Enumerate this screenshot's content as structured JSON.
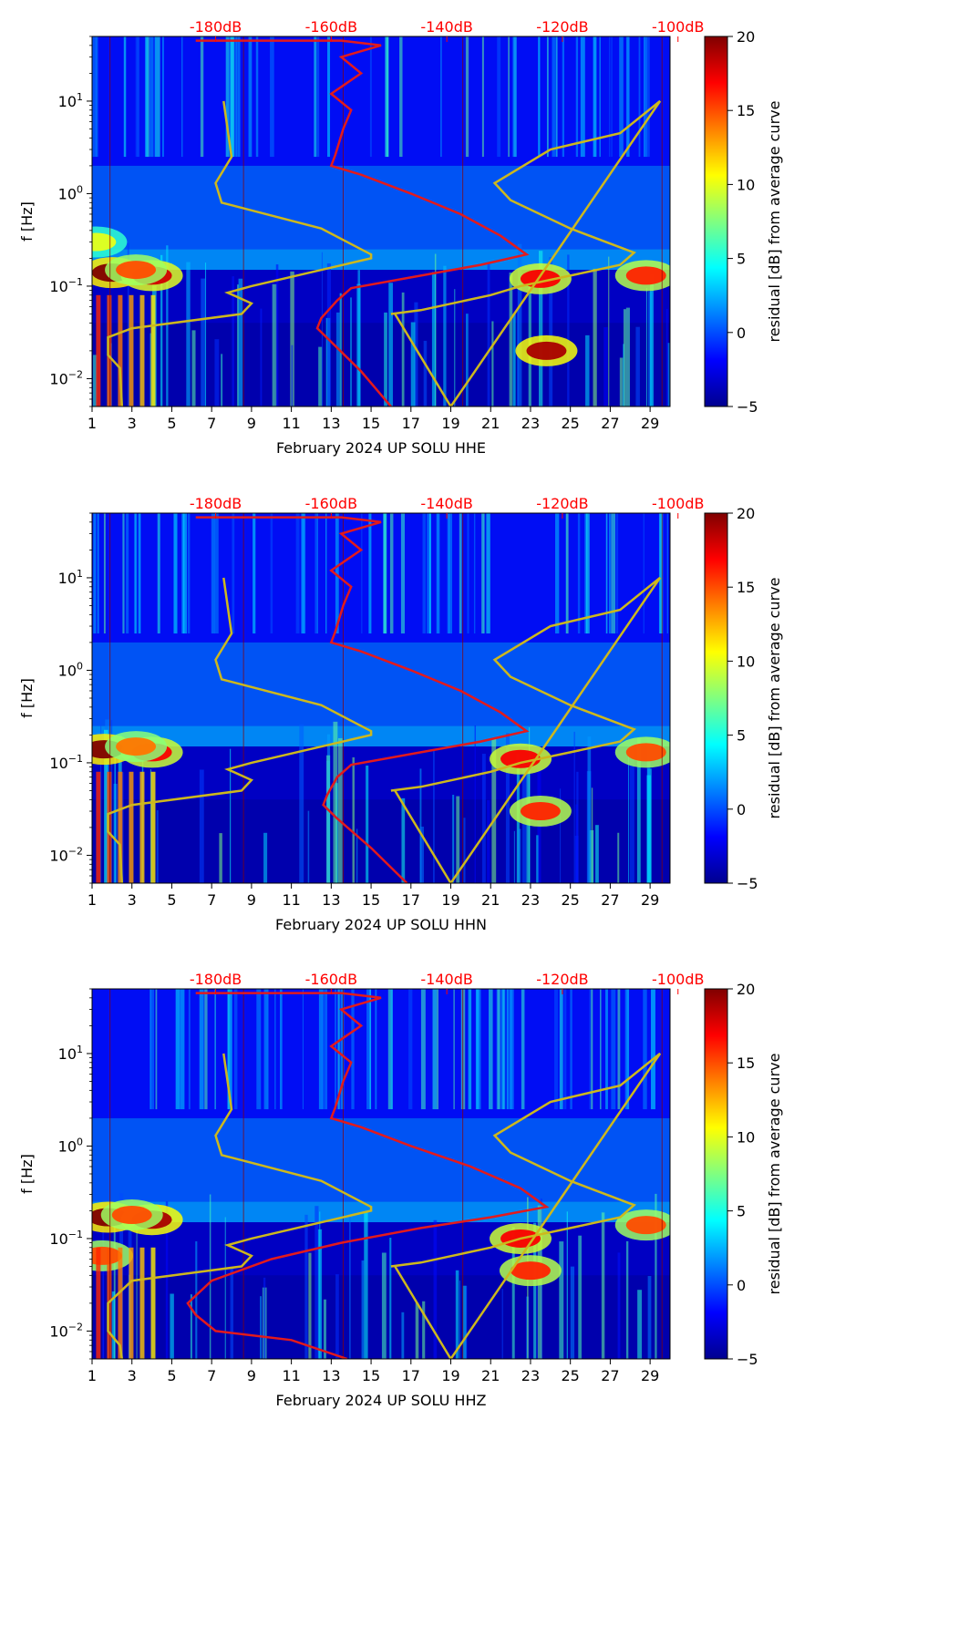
{
  "figure": {
    "colors": {
      "noise_model": "#e31a1c",
      "psd_curve": "#cdb81d",
      "text_red": "#ff0000",
      "colormap": [
        "#00008f",
        "#0000ff",
        "#0080ff",
        "#00ffff",
        "#80ff80",
        "#ffff00",
        "#ff8000",
        "#ff0000",
        "#800000"
      ]
    }
  },
  "chart_data": [
    {
      "type": "heatmap",
      "panel": "HHE",
      "title": "",
      "xlabel": "February 2024 UP SOLU  HHE",
      "ylabel": "f [Hz]",
      "x_ticks": [
        "1",
        "3",
        "5",
        "7",
        "9",
        "11",
        "13",
        "15",
        "17",
        "19",
        "21",
        "23",
        "25",
        "27",
        "29"
      ],
      "x_range": [
        1,
        30
      ],
      "y_scale": "log",
      "y_range": [
        0.005,
        50
      ],
      "y_ticks": [
        {
          "value": 0.01,
          "base": "10",
          "exp": "−2"
        },
        {
          "value": 0.1,
          "base": "10",
          "exp": "−1"
        },
        {
          "value": 1,
          "base": "10",
          "exp": "0"
        },
        {
          "value": 10,
          "base": "10",
          "exp": "1"
        }
      ],
      "top_axis_labels": [
        "-180dB",
        "-160dB",
        "-140dB",
        "-120dB",
        "-100dB"
      ],
      "top_axis_days": [
        7.2,
        13.0,
        18.8,
        24.6,
        30.4
      ],
      "colorbar": {
        "label": "residual [dB] from average curve",
        "range": [
          -5,
          20
        ],
        "ticks": [
          "20",
          "15",
          "10",
          "5",
          "0",
          "−5"
        ],
        "tick_values": [
          20,
          15,
          10,
          5,
          0,
          -5
        ]
      },
      "series": [
        {
          "name": "noise model",
          "color": "#e31a1c",
          "points": [
            [
              6.2,
              45
            ],
            [
              13.5,
              45
            ],
            [
              15.5,
              40
            ],
            [
              13.5,
              30
            ],
            [
              14.5,
              20
            ],
            [
              13.0,
              12
            ],
            [
              14.0,
              8
            ],
            [
              13.6,
              5
            ],
            [
              13.2,
              2.6
            ],
            [
              13.0,
              2.0
            ],
            [
              14.5,
              1.6
            ],
            [
              17.0,
              1.0
            ],
            [
              19.5,
              0.6
            ],
            [
              21.5,
              0.35
            ],
            [
              22.8,
              0.22
            ],
            [
              20.5,
              0.17
            ],
            [
              17.5,
              0.13
            ],
            [
              14.0,
              0.095
            ],
            [
              13.3,
              0.07
            ],
            [
              12.5,
              0.045
            ],
            [
              12.3,
              0.035
            ],
            [
              13.0,
              0.025
            ],
            [
              14.5,
              0.012
            ],
            [
              16.0,
              0.005
            ]
          ]
        },
        {
          "name": "PSD curve",
          "color": "#cdb81d",
          "points": [
            [
              2.5,
              0.005
            ],
            [
              2.4,
              0.013
            ],
            [
              1.8,
              0.018
            ],
            [
              1.8,
              0.028
            ],
            [
              3.0,
              0.035
            ],
            [
              8.5,
              0.05
            ],
            [
              9.0,
              0.065
            ],
            [
              7.8,
              0.085
            ],
            [
              9.0,
              0.1
            ],
            [
              15.0,
              0.2
            ],
            [
              15.0,
              0.22
            ],
            [
              12.5,
              0.42
            ],
            [
              7.5,
              0.8
            ],
            [
              7.2,
              1.3
            ],
            [
              8.0,
              2.5
            ],
            [
              7.6,
              10
            ],
            [
              16.0,
              0.05
            ],
            [
              17.5,
              0.055
            ],
            [
              21.0,
              0.08
            ],
            [
              22.5,
              0.1
            ],
            [
              25.0,
              0.13
            ],
            [
              27.5,
              0.17
            ],
            [
              28.2,
              0.23
            ],
            [
              25.0,
              0.42
            ],
            [
              22.0,
              0.85
            ],
            [
              21.2,
              1.3
            ],
            [
              24.0,
              3.0
            ],
            [
              27.5,
              4.5
            ],
            [
              29.5,
              10
            ],
            [
              19.0,
              0.005
            ],
            [
              16.2,
              0.05
            ]
          ]
        }
      ],
      "highlights": [
        {
          "day": 2.0,
          "f": 0.14,
          "level": 20
        },
        {
          "day": 4.0,
          "f": 0.13,
          "level": 18
        },
        {
          "day": 3.2,
          "f": 0.15,
          "level": 15
        },
        {
          "day": 23.5,
          "f": 0.12,
          "level": 17
        },
        {
          "day": 28.8,
          "f": 0.13,
          "level": 16
        },
        {
          "day": 1.2,
          "f": 0.3,
          "level": 10
        },
        {
          "day": 23.8,
          "f": 0.02,
          "level": 19
        }
      ]
    },
    {
      "type": "heatmap",
      "panel": "HHN",
      "title": "",
      "xlabel": "February 2024 UP SOLU  HHN",
      "ylabel": "f [Hz]",
      "x_ticks": [
        "1",
        "3",
        "5",
        "7",
        "9",
        "11",
        "13",
        "15",
        "17",
        "19",
        "21",
        "23",
        "25",
        "27",
        "29"
      ],
      "x_range": [
        1,
        30
      ],
      "y_scale": "log",
      "y_range": [
        0.005,
        50
      ],
      "y_ticks": [
        {
          "value": 0.01,
          "base": "10",
          "exp": "−2"
        },
        {
          "value": 0.1,
          "base": "10",
          "exp": "−1"
        },
        {
          "value": 1,
          "base": "10",
          "exp": "0"
        },
        {
          "value": 10,
          "base": "10",
          "exp": "1"
        }
      ],
      "top_axis_labels": [
        "-180dB",
        "-160dB",
        "-140dB",
        "-120dB",
        "-100dB"
      ],
      "top_axis_days": [
        7.2,
        13.0,
        18.8,
        24.6,
        30.4
      ],
      "colorbar": {
        "label": "residual [dB] from average curve",
        "range": [
          -5,
          20
        ],
        "ticks": [
          "20",
          "15",
          "10",
          "5",
          "0",
          "−5"
        ],
        "tick_values": [
          20,
          15,
          10,
          5,
          0,
          -5
        ]
      },
      "series": [
        {
          "name": "noise model",
          "color": "#e31a1c",
          "points": [
            [
              6.2,
              45
            ],
            [
              13.5,
              45
            ],
            [
              15.5,
              40
            ],
            [
              13.5,
              30
            ],
            [
              14.5,
              20
            ],
            [
              13.0,
              12
            ],
            [
              14.0,
              8
            ],
            [
              13.6,
              5
            ],
            [
              13.2,
              2.6
            ],
            [
              13.0,
              2.0
            ],
            [
              14.5,
              1.6
            ],
            [
              17.0,
              1.0
            ],
            [
              19.5,
              0.6
            ],
            [
              21.5,
              0.35
            ],
            [
              22.8,
              0.22
            ],
            [
              20.5,
              0.17
            ],
            [
              17.5,
              0.13
            ],
            [
              14.0,
              0.095
            ],
            [
              13.3,
              0.07
            ],
            [
              12.8,
              0.045
            ],
            [
              12.6,
              0.035
            ],
            [
              13.3,
              0.025
            ],
            [
              15.0,
              0.012
            ],
            [
              16.8,
              0.005
            ]
          ]
        },
        {
          "name": "PSD curve",
          "color": "#cdb81d",
          "points": [
            [
              2.5,
              0.005
            ],
            [
              2.4,
              0.013
            ],
            [
              1.8,
              0.018
            ],
            [
              1.8,
              0.028
            ],
            [
              3.0,
              0.035
            ],
            [
              8.5,
              0.05
            ],
            [
              9.0,
              0.065
            ],
            [
              7.8,
              0.085
            ],
            [
              9.0,
              0.1
            ],
            [
              15.0,
              0.2
            ],
            [
              15.0,
              0.22
            ],
            [
              12.5,
              0.42
            ],
            [
              7.5,
              0.8
            ],
            [
              7.2,
              1.3
            ],
            [
              8.0,
              2.5
            ],
            [
              7.6,
              10
            ],
            [
              16.0,
              0.05
            ],
            [
              17.5,
              0.055
            ],
            [
              21.0,
              0.08
            ],
            [
              22.5,
              0.1
            ],
            [
              25.0,
              0.13
            ],
            [
              27.5,
              0.17
            ],
            [
              28.2,
              0.23
            ],
            [
              25.0,
              0.42
            ],
            [
              22.0,
              0.85
            ],
            [
              21.2,
              1.3
            ],
            [
              24.0,
              3.0
            ],
            [
              27.5,
              4.5
            ],
            [
              29.5,
              10
            ],
            [
              19.0,
              0.005
            ],
            [
              16.2,
              0.05
            ]
          ]
        }
      ],
      "highlights": [
        {
          "day": 1.6,
          "f": 0.14,
          "level": 20
        },
        {
          "day": 4.0,
          "f": 0.13,
          "level": 17
        },
        {
          "day": 3.2,
          "f": 0.15,
          "level": 14
        },
        {
          "day": 22.5,
          "f": 0.11,
          "level": 17
        },
        {
          "day": 28.8,
          "f": 0.13,
          "level": 15
        },
        {
          "day": 23.5,
          "f": 0.03,
          "level": 16
        }
      ]
    },
    {
      "type": "heatmap",
      "panel": "HHZ",
      "title": "",
      "xlabel": "February 2024 UP SOLU  HHZ",
      "ylabel": "f [Hz]",
      "x_ticks": [
        "1",
        "3",
        "5",
        "7",
        "9",
        "11",
        "13",
        "15",
        "17",
        "19",
        "21",
        "23",
        "25",
        "27",
        "29"
      ],
      "x_range": [
        1,
        30
      ],
      "y_scale": "log",
      "y_range": [
        0.005,
        50
      ],
      "y_ticks": [
        {
          "value": 0.01,
          "base": "10",
          "exp": "−2"
        },
        {
          "value": 0.1,
          "base": "10",
          "exp": "−1"
        },
        {
          "value": 1,
          "base": "10",
          "exp": "0"
        },
        {
          "value": 10,
          "base": "10",
          "exp": "1"
        }
      ],
      "top_axis_labels": [
        "-180dB",
        "-160dB",
        "-140dB",
        "-120dB",
        "-100dB"
      ],
      "top_axis_days": [
        7.2,
        13.0,
        18.8,
        24.6,
        30.4
      ],
      "colorbar": {
        "label": "residual [dB] from average curve",
        "range": [
          -5,
          20
        ],
        "ticks": [
          "20",
          "15",
          "10",
          "5",
          "0",
          "−5"
        ],
        "tick_values": [
          20,
          15,
          10,
          5,
          0,
          -5
        ]
      },
      "series": [
        {
          "name": "noise model",
          "color": "#e31a1c",
          "points": [
            [
              6.2,
              45
            ],
            [
              13.5,
              45
            ],
            [
              15.5,
              40
            ],
            [
              13.5,
              30
            ],
            [
              14.5,
              20
            ],
            [
              13.0,
              12
            ],
            [
              14.0,
              8
            ],
            [
              13.6,
              5
            ],
            [
              13.2,
              2.6
            ],
            [
              13.0,
              2.0
            ],
            [
              14.5,
              1.6
            ],
            [
              17.0,
              1.0
            ],
            [
              20.0,
              0.6
            ],
            [
              22.5,
              0.35
            ],
            [
              23.8,
              0.22
            ],
            [
              21.0,
              0.17
            ],
            [
              17.5,
              0.13
            ],
            [
              13.5,
              0.09
            ],
            [
              10.0,
              0.06
            ],
            [
              7.0,
              0.035
            ],
            [
              5.8,
              0.02
            ],
            [
              6.2,
              0.015
            ],
            [
              7.2,
              0.01
            ],
            [
              11.0,
              0.008
            ],
            [
              13.8,
              0.005
            ]
          ]
        },
        {
          "name": "PSD curve",
          "color": "#cdb81d",
          "points": [
            [
              2.5,
              0.005
            ],
            [
              2.4,
              0.007
            ],
            [
              1.8,
              0.01
            ],
            [
              1.8,
              0.02
            ],
            [
              3.0,
              0.035
            ],
            [
              8.5,
              0.05
            ],
            [
              9.0,
              0.065
            ],
            [
              7.8,
              0.085
            ],
            [
              9.0,
              0.1
            ],
            [
              15.0,
              0.2
            ],
            [
              15.0,
              0.22
            ],
            [
              12.5,
              0.42
            ],
            [
              7.5,
              0.8
            ],
            [
              7.2,
              1.3
            ],
            [
              8.0,
              2.5
            ],
            [
              7.6,
              10
            ],
            [
              16.0,
              0.05
            ],
            [
              17.5,
              0.055
            ],
            [
              21.0,
              0.08
            ],
            [
              22.5,
              0.1
            ],
            [
              25.0,
              0.13
            ],
            [
              27.5,
              0.17
            ],
            [
              28.2,
              0.23
            ],
            [
              25.0,
              0.42
            ],
            [
              22.0,
              0.85
            ],
            [
              21.2,
              1.3
            ],
            [
              24.0,
              3.0
            ],
            [
              27.5,
              4.5
            ],
            [
              29.5,
              10
            ],
            [
              19.0,
              0.005
            ],
            [
              16.2,
              0.05
            ]
          ]
        }
      ],
      "highlights": [
        {
          "day": 1.8,
          "f": 0.17,
          "level": 20
        },
        {
          "day": 4.0,
          "f": 0.16,
          "level": 19
        },
        {
          "day": 3.0,
          "f": 0.18,
          "level": 15
        },
        {
          "day": 22.5,
          "f": 0.1,
          "level": 17
        },
        {
          "day": 28.8,
          "f": 0.14,
          "level": 15
        },
        {
          "day": 23.0,
          "f": 0.045,
          "level": 16
        },
        {
          "day": 1.5,
          "f": 0.065,
          "level": 15
        }
      ]
    }
  ]
}
